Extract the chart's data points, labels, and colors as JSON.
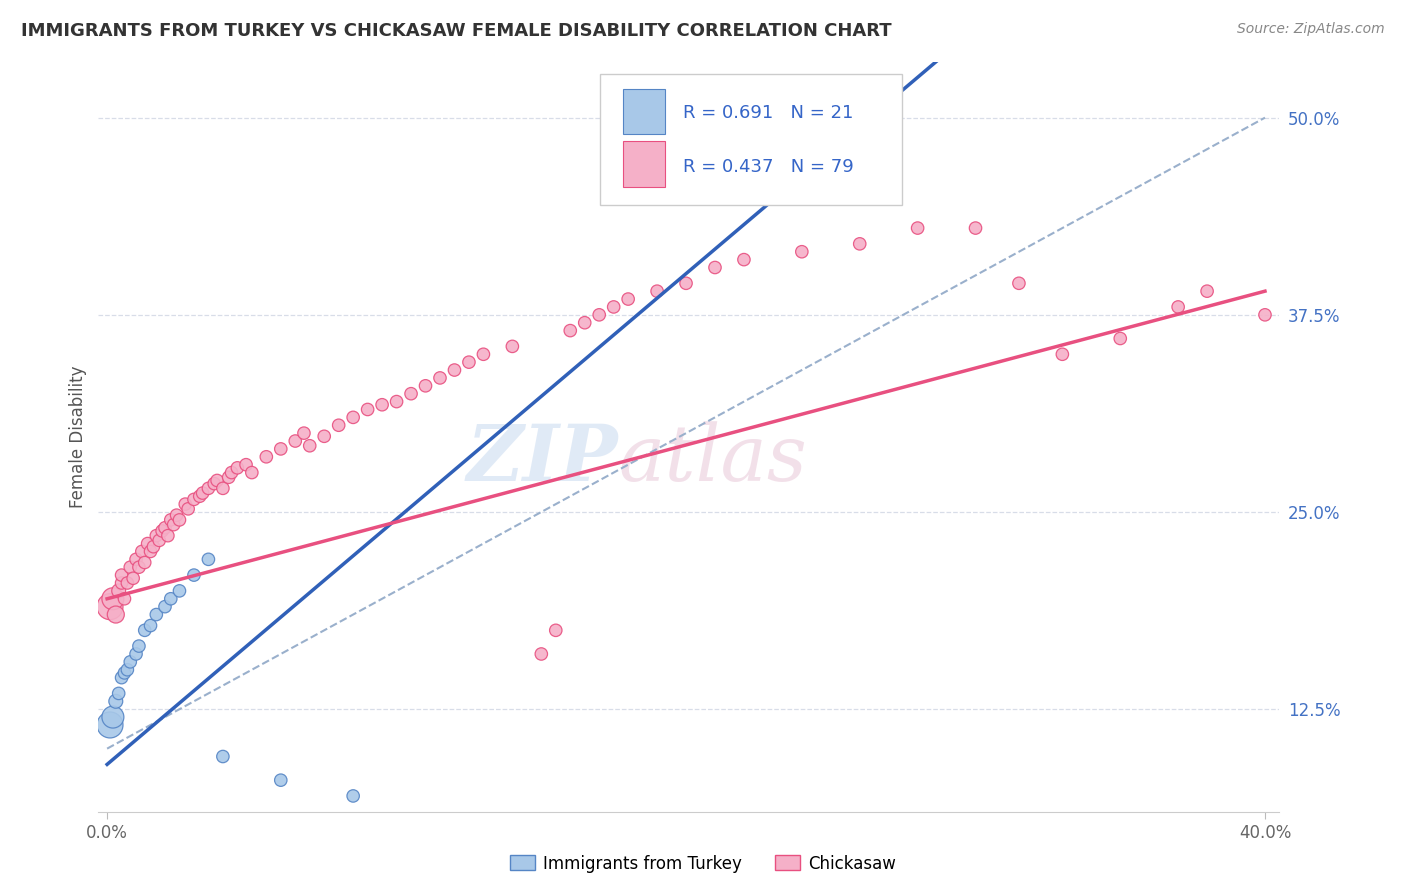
{
  "title": "IMMIGRANTS FROM TURKEY VS CHICKASAW FEMALE DISABILITY CORRELATION CHART",
  "source": "Source: ZipAtlas.com",
  "ylabel": "Female Disability",
  "xlim": [
    -0.003,
    0.405
  ],
  "ylim": [
    0.06,
    0.535
  ],
  "xtick_vals": [
    0.0,
    0.4
  ],
  "xtick_labels": [
    "0.0%",
    "40.0%"
  ],
  "ytick_vals": [
    0.125,
    0.25,
    0.375,
    0.5
  ],
  "ytick_labels": [
    "12.5%",
    "25.0%",
    "37.5%",
    "50.0%"
  ],
  "blue_color": "#a8c8e8",
  "pink_color": "#f5b0c8",
  "blue_edge_color": "#5585c5",
  "pink_edge_color": "#e85080",
  "blue_line_color": "#3060b8",
  "pink_line_color": "#e85080",
  "dash_line_color": "#9ab0cc",
  "blue_R": 0.691,
  "blue_N": 21,
  "pink_R": 0.437,
  "pink_N": 79,
  "watermark_zip": "ZIP",
  "watermark_atlas": "atlas",
  "blue_x": [
    0.001,
    0.002,
    0.003,
    0.004,
    0.005,
    0.006,
    0.007,
    0.008,
    0.01,
    0.011,
    0.013,
    0.015,
    0.017,
    0.02,
    0.022,
    0.025,
    0.03,
    0.035,
    0.04,
    0.06,
    0.085
  ],
  "blue_y": [
    0.115,
    0.12,
    0.13,
    0.135,
    0.145,
    0.148,
    0.15,
    0.155,
    0.16,
    0.165,
    0.175,
    0.178,
    0.185,
    0.19,
    0.195,
    0.2,
    0.21,
    0.22,
    0.095,
    0.08,
    0.07
  ],
  "blue_sizes": [
    350,
    250,
    100,
    80,
    80,
    80,
    80,
    80,
    80,
    80,
    80,
    80,
    80,
    80,
    80,
    80,
    80,
    80,
    80,
    80,
    80
  ],
  "pink_x": [
    0.001,
    0.002,
    0.003,
    0.004,
    0.005,
    0.005,
    0.006,
    0.007,
    0.008,
    0.009,
    0.01,
    0.011,
    0.012,
    0.013,
    0.014,
    0.015,
    0.016,
    0.017,
    0.018,
    0.019,
    0.02,
    0.021,
    0.022,
    0.023,
    0.024,
    0.025,
    0.027,
    0.028,
    0.03,
    0.032,
    0.033,
    0.035,
    0.037,
    0.038,
    0.04,
    0.042,
    0.043,
    0.045,
    0.048,
    0.05,
    0.055,
    0.06,
    0.065,
    0.068,
    0.07,
    0.075,
    0.08,
    0.085,
    0.09,
    0.095,
    0.1,
    0.105,
    0.11,
    0.115,
    0.12,
    0.125,
    0.13,
    0.14,
    0.15,
    0.155,
    0.16,
    0.165,
    0.17,
    0.175,
    0.18,
    0.19,
    0.2,
    0.21,
    0.22,
    0.24,
    0.26,
    0.28,
    0.3,
    0.315,
    0.33,
    0.35,
    0.37,
    0.38,
    0.4
  ],
  "pink_y": [
    0.19,
    0.195,
    0.185,
    0.2,
    0.205,
    0.21,
    0.195,
    0.205,
    0.215,
    0.208,
    0.22,
    0.215,
    0.225,
    0.218,
    0.23,
    0.225,
    0.228,
    0.235,
    0.232,
    0.238,
    0.24,
    0.235,
    0.245,
    0.242,
    0.248,
    0.245,
    0.255,
    0.252,
    0.258,
    0.26,
    0.262,
    0.265,
    0.268,
    0.27,
    0.265,
    0.272,
    0.275,
    0.278,
    0.28,
    0.275,
    0.285,
    0.29,
    0.295,
    0.3,
    0.292,
    0.298,
    0.305,
    0.31,
    0.315,
    0.318,
    0.32,
    0.325,
    0.33,
    0.335,
    0.34,
    0.345,
    0.35,
    0.355,
    0.16,
    0.175,
    0.365,
    0.37,
    0.375,
    0.38,
    0.385,
    0.39,
    0.395,
    0.405,
    0.41,
    0.415,
    0.42,
    0.43,
    0.43,
    0.395,
    0.35,
    0.36,
    0.38,
    0.39,
    0.375
  ],
  "pink_sizes": [
    350,
    250,
    150,
    100,
    80,
    80,
    80,
    80,
    80,
    80,
    80,
    80,
    80,
    80,
    80,
    80,
    80,
    80,
    80,
    80,
    80,
    80,
    80,
    80,
    80,
    80,
    80,
    80,
    80,
    80,
    80,
    80,
    80,
    80,
    80,
    80,
    80,
    80,
    80,
    80,
    80,
    80,
    80,
    80,
    80,
    80,
    80,
    80,
    80,
    80,
    80,
    80,
    80,
    80,
    80,
    80,
    80,
    80,
    80,
    80,
    80,
    80,
    80,
    80,
    80,
    80,
    80,
    80,
    80,
    80,
    80,
    80,
    80,
    80,
    80,
    80,
    80,
    80,
    80
  ]
}
